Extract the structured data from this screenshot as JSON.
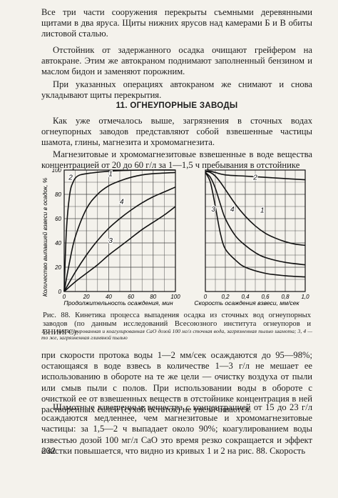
{
  "paragraphs_top": [
    "Все три части сооружения перекрыты съемными деревянными щитами в два яруса. Щиты нижних ярусов над камерами Б и В обиты листовой сталью.",
    "Отстойник от задержанного осадка очищают грейфером на автокране. Этим же автокраном поднимают заполненный бензином и маслом бидон и заменяют порожним.",
    "При указанных операциях автокраном же снимают и снова укладывают щиты перекрытия."
  ],
  "section_title": "11. ОГНЕУПОРНЫЕ ЗАВОДЫ",
  "paragraphs_mid": [
    "Как уже отмечалось выше, загрязнения в сточных водах огнеупорных заводов представляют собой взвешенные частицы шамота, глины, магнезита и хромомагнезита.",
    "Магнезитовые и хромомагнезитовые взвешенные в воде вещества концентрацией от 20 до 60 г/л за 1—1,5 ч пребывания в отстойнике"
  ],
  "figure": {
    "ylabel": "Количество выпавшей взвеси в осадок, %",
    "left_xlabel": "Продолжительность осаждения, мин",
    "right_xlabel": "Скорость осаждения взвеси, мм/сек",
    "y_ticks": [
      "100",
      "80",
      "60",
      "40",
      "20",
      "0"
    ],
    "left_x_ticks": [
      "0",
      "20",
      "40",
      "60",
      "80",
      "100"
    ],
    "right_x_ticks": [
      "0",
      "0,2",
      "0,4",
      "0,6",
      "0,8",
      "1,0"
    ],
    "curve_labels_left": [
      "2",
      "1",
      "4",
      "3"
    ],
    "curve_labels_right": [
      "2",
      "3",
      "4",
      "1"
    ]
  },
  "chart_data": [
    {
      "type": "line",
      "xlabel": "Продолжительность осаждения, мин",
      "ylabel": "Количество выпавшей взвеси в осадок, %",
      "xlim": [
        0,
        100
      ],
      "ylim": [
        0,
        100
      ],
      "series": [
        {
          "name": "2",
          "x": [
            0,
            2,
            5,
            8,
            12,
            20,
            40,
            70,
            100
          ],
          "y": [
            0,
            50,
            80,
            90,
            95,
            97,
            99,
            100,
            100
          ]
        },
        {
          "name": "1",
          "x": [
            0,
            5,
            10,
            20,
            30,
            40,
            50,
            60,
            70,
            80,
            100
          ],
          "y": [
            0,
            25,
            45,
            68,
            80,
            87,
            91,
            94,
            96,
            97,
            98
          ]
        },
        {
          "name": "4",
          "x": [
            0,
            10,
            20,
            30,
            40,
            50,
            60,
            70,
            80,
            90,
            100
          ],
          "y": [
            0,
            16,
            30,
            42,
            52,
            60,
            67,
            73,
            78,
            82,
            86
          ]
        },
        {
          "name": "3",
          "x": [
            0,
            10,
            20,
            30,
            40,
            50,
            60,
            70,
            80,
            90,
            100
          ],
          "y": [
            0,
            8,
            15,
            22,
            30,
            37,
            44,
            51,
            57,
            63,
            70
          ]
        }
      ]
    },
    {
      "type": "line",
      "xlabel": "Скорость осаждения взвеси, мм/сек",
      "ylabel": "Количество выпавшей взвеси в осадок, %",
      "xlim": [
        0,
        1.0
      ],
      "ylim": [
        0,
        100
      ],
      "series": [
        {
          "name": "2",
          "x": [
            0,
            0.02,
            0.05,
            0.1,
            0.2,
            0.4,
            0.6,
            0.8,
            1.0
          ],
          "y": [
            98,
            99,
            99,
            98,
            96,
            95,
            94,
            93,
            92
          ]
        },
        {
          "name": "3",
          "x": [
            0,
            0.05,
            0.1,
            0.15,
            0.2,
            0.3,
            0.4,
            0.6,
            0.8,
            1.0
          ],
          "y": [
            98,
            90,
            70,
            48,
            35,
            26,
            20,
            15,
            13,
            12
          ]
        },
        {
          "name": "4",
          "x": [
            0,
            0.05,
            0.1,
            0.15,
            0.2,
            0.3,
            0.4,
            0.5,
            0.6,
            0.8,
            1.0
          ],
          "y": [
            98,
            94,
            85,
            72,
            60,
            46,
            38,
            32,
            28,
            24,
            22
          ]
        },
        {
          "name": "1",
          "x": [
            0,
            0.05,
            0.1,
            0.15,
            0.2,
            0.3,
            0.4,
            0.5,
            0.6,
            0.7,
            0.8,
            0.9,
            1.0
          ],
          "y": [
            99,
            98,
            95,
            90,
            84,
            72,
            62,
            54,
            48,
            44,
            41,
            39,
            38
          ]
        }
      ]
    }
  ],
  "caption": "Рис. 88. Кинетика процесса выпадения осадка из сточных вод огнеупорных заводов (по данным исследований Всесоюзного института огнеупоров и ВНИИГС):",
  "footnote": "1, 2 — некоагулированная и коагулированная CaO дозой 100 мг/л сточная вода, загрязненная пылью шамота; 3, 4 — то же, загрязненная глиняной пылью",
  "paragraphs_bottom": [
    "при скорости протока воды 1—2 мм/сек осаждаются до 95—98%; остающаяся в воде взвесь в количестве 1—3 г/л не мешает ее использованию в обороте на те же цели — очистку воздуха от пыли или смыв пыли с полов. При использовании воды в обороте с очисткой ее от взвешенных веществ в отстойнике концентрация в ней растворенных солей (сухой остаток) не увеличивается.",
    "Шамотные взвешенные вещества с концентрацией от 15 до 23 г/л осаждаются медленнее, чем магнезитовые и хромомагнезитовые частицы: за 1,5—2 ч выпадает около 90%; коагулированием воды известью дозой 100 мг/л CaO это время резко сокращается и эффект очистки повышается, что видно из кривых 1 и 2 на рис. 88. Скорость"
  ],
  "page_number": "232"
}
